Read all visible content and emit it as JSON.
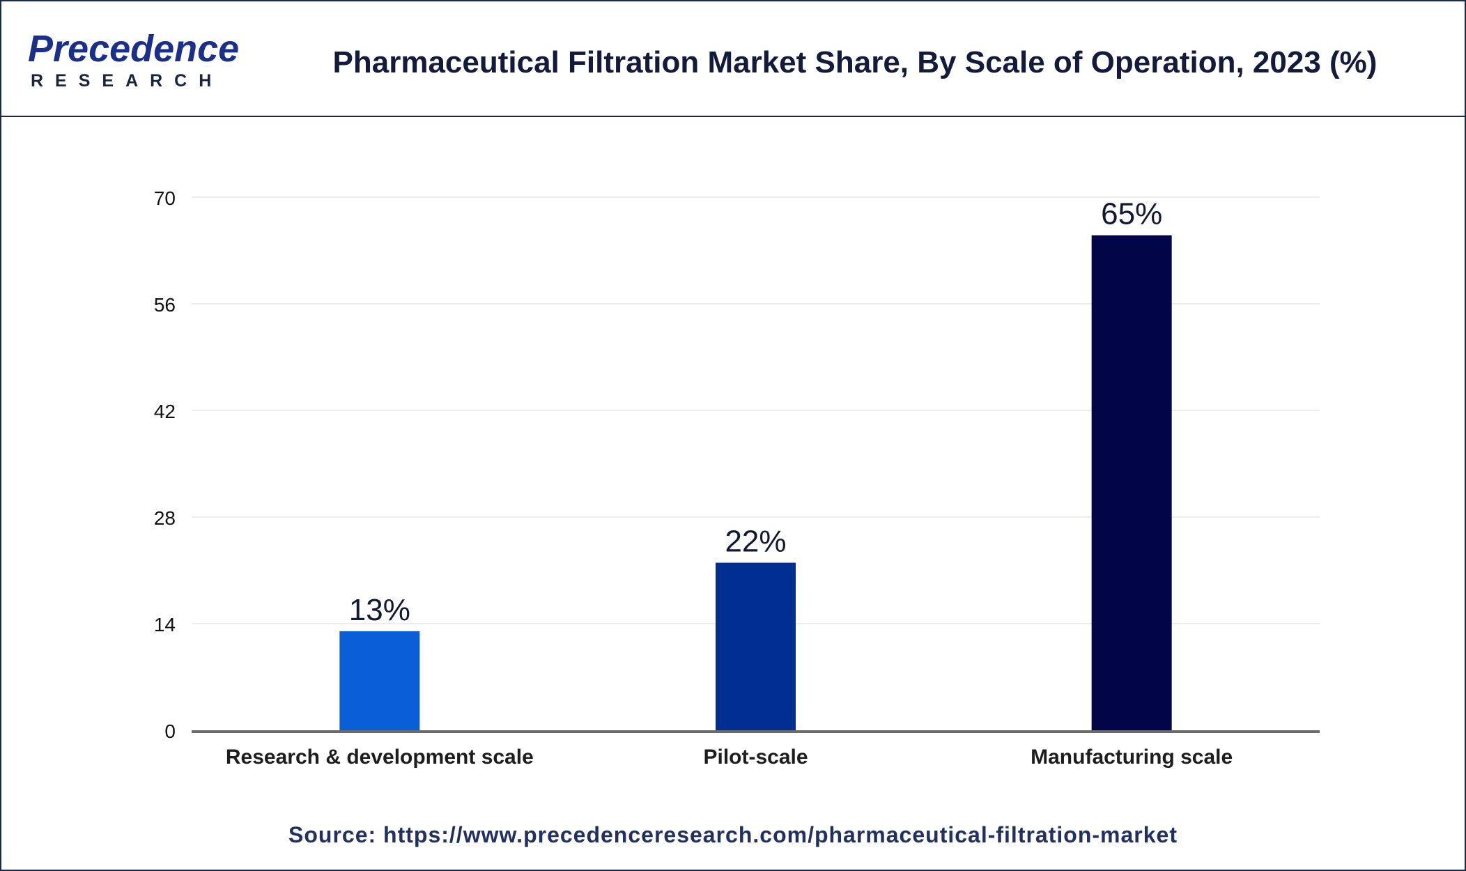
{
  "header": {
    "logo_word": "Precedence",
    "logo_sub": "RESEARCH",
    "title": "Pharmaceutical Filtration Market Share, By Scale of Operation, 2023 (%)"
  },
  "footer": {
    "source": "Source: https://www.precedenceresearch.com/pharmaceutical-filtration-market"
  },
  "chart_data": {
    "type": "bar",
    "title": "Pharmaceutical Filtration Market Share, By Scale of Operation, 2023 (%)",
    "xlabel": "",
    "ylabel": "",
    "categories": [
      "Research & development scale",
      "Pilot-scale",
      "Manufacturing scale"
    ],
    "values": [
      13,
      22,
      65
    ],
    "data_labels": [
      "13%",
      "22%",
      "65%"
    ],
    "colors": [
      "#0a5ed7",
      "#002e91",
      "#020548"
    ],
    "ylim": [
      0,
      70
    ],
    "yticks": [
      0,
      14,
      28,
      42,
      56,
      70
    ],
    "grid": true,
    "legend": "none"
  }
}
